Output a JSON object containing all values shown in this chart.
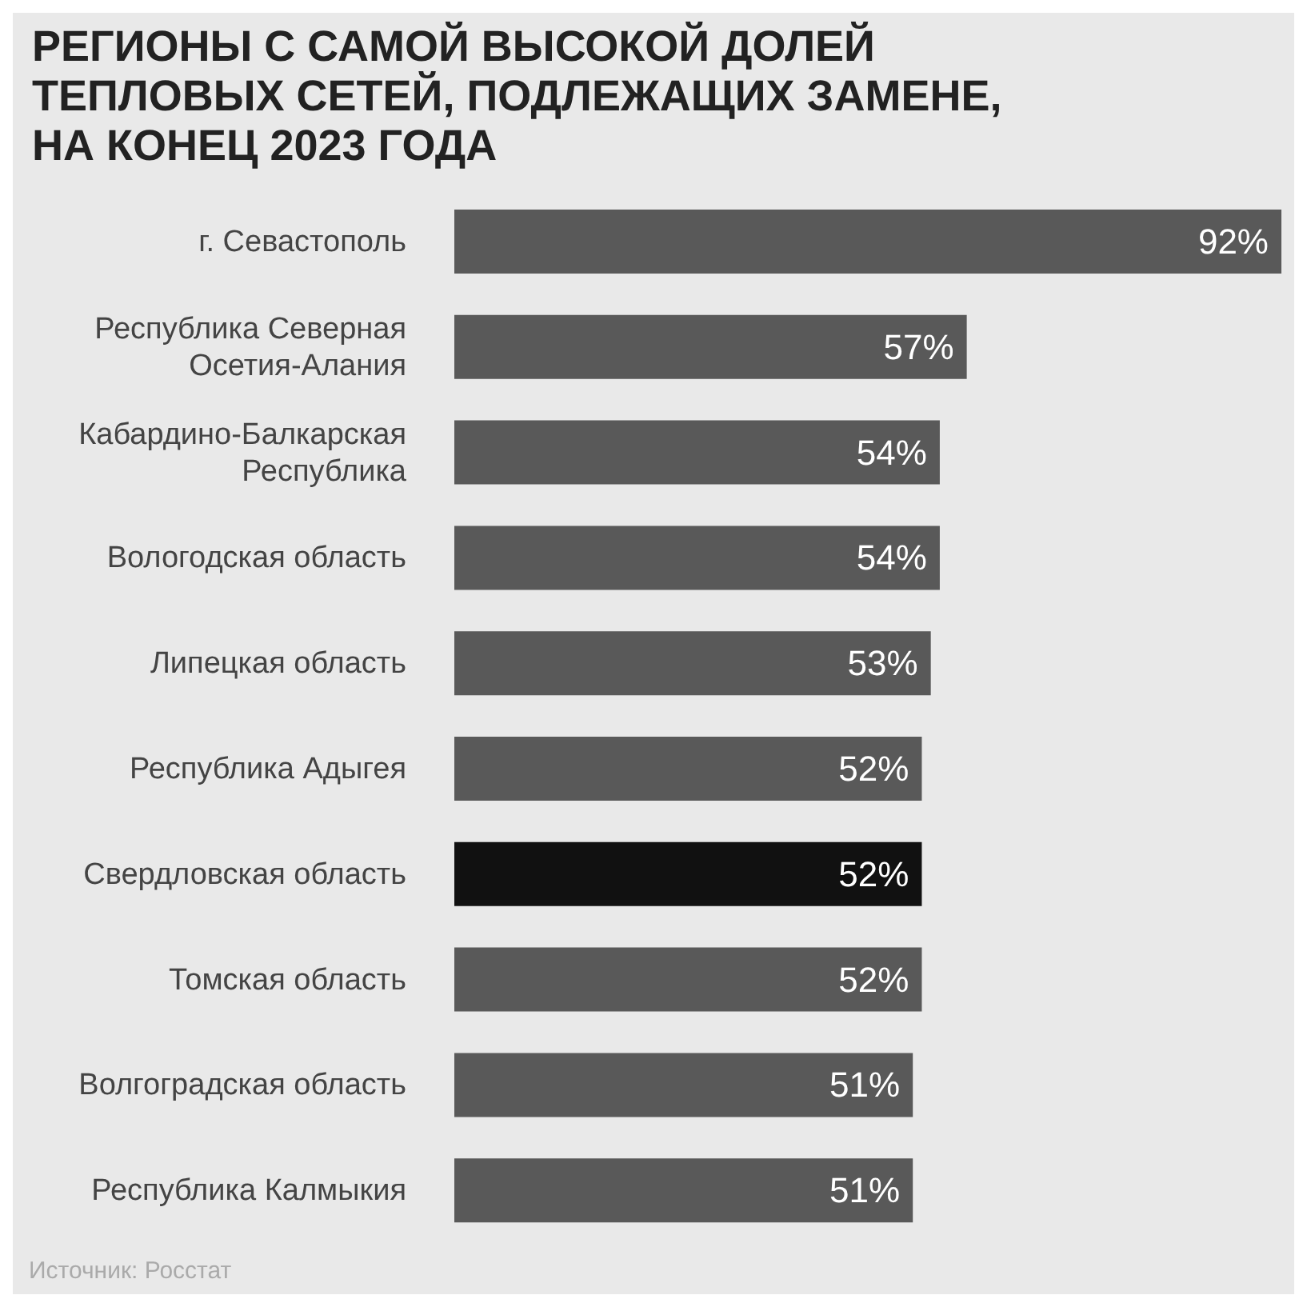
{
  "chart_data": {
    "type": "bar",
    "orientation": "horizontal",
    "title": "РЕГИОНЫ С САМОЙ ВЫСОКОЙ ДОЛЕЙ ТЕПЛОВЫХ СЕТЕЙ, ПОДЛЕЖАЩИХ ЗАМЕНЕ, НА КОНЕЦ 2023 ГОДА",
    "categories": [
      "г. Севастополь",
      "Республика Северная Осетия-Алания",
      "Кабардино-Балкарская Республика",
      "Вологодская область",
      "Липецкая область",
      "Республика Адыгея",
      "Свердловская область",
      "Томская область",
      "Волгоградская область",
      "Республика Калмыкия"
    ],
    "values": [
      92,
      57,
      54,
      54,
      53,
      52,
      52,
      52,
      51,
      51
    ],
    "value_labels": [
      "92%",
      "57%",
      "54%",
      "54%",
      "53%",
      "52%",
      "52%",
      "52%",
      "51%",
      "51%"
    ],
    "colors": [
      "#595959",
      "#595959",
      "#595959",
      "#595959",
      "#595959",
      "#595959",
      "#111111",
      "#595959",
      "#595959",
      "#595959"
    ],
    "xlim": [
      0,
      92
    ],
    "tick_labels": "y",
    "annotations": [
      "Источник: Росстат"
    ]
  }
}
